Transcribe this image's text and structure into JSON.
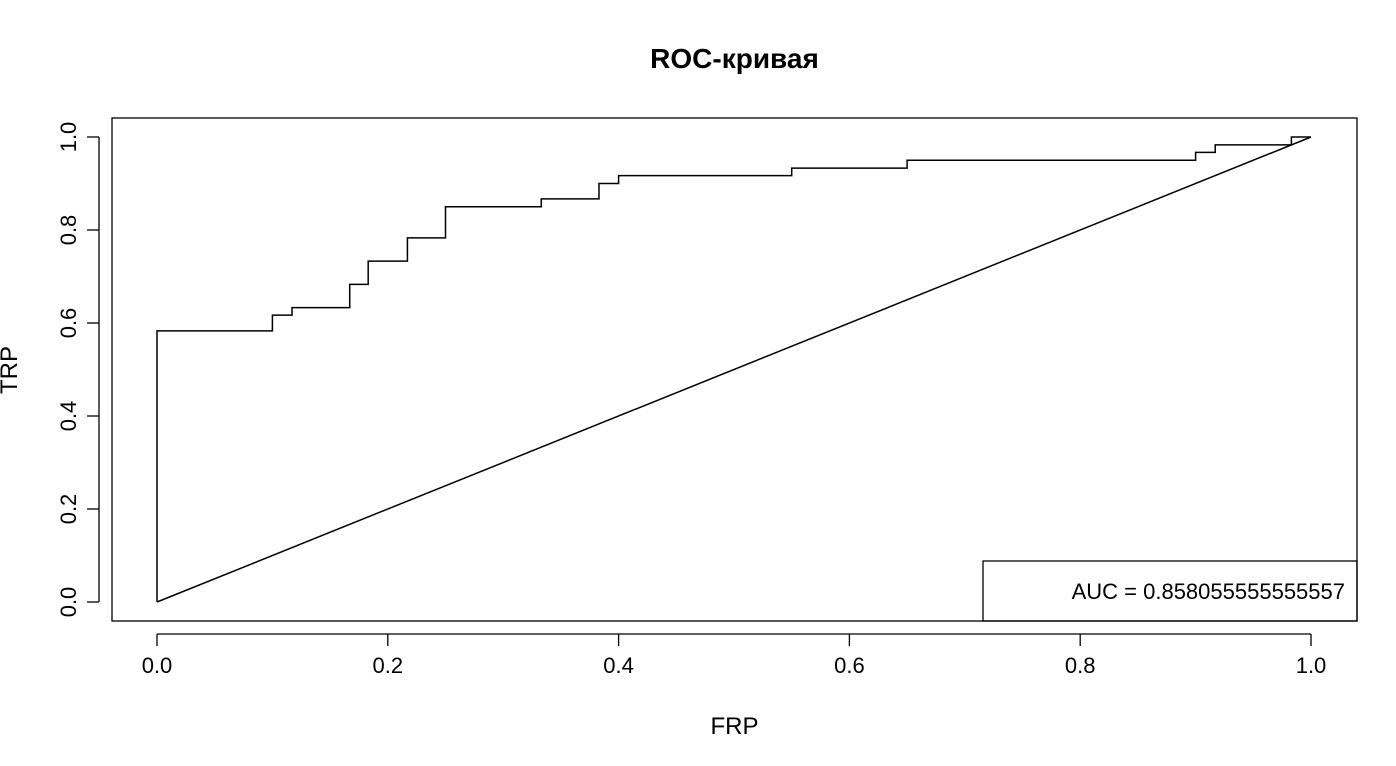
{
  "chart_data": {
    "type": "line",
    "title": "ROC-кривая",
    "xlabel": "FRP",
    "ylabel": "TRP",
    "xlim": [
      0,
      1
    ],
    "ylim": [
      0,
      1
    ],
    "x_ticks": [
      "0.0",
      "0.2",
      "0.4",
      "0.6",
      "0.8",
      "1.0"
    ],
    "y_ticks": [
      "0.0",
      "0.2",
      "0.4",
      "0.6",
      "0.8",
      "1.0"
    ],
    "grid": false,
    "legend": {
      "placement": "bottom-right",
      "text": "AUC =  0.858055555555557"
    },
    "series": [
      {
        "points": [
          [
            0.0,
            0.0
          ],
          [
            0.0,
            0.583
          ],
          [
            0.1,
            0.583
          ],
          [
            0.1,
            0.617
          ],
          [
            0.117,
            0.617
          ],
          [
            0.117,
            0.633
          ],
          [
            0.167,
            0.633
          ],
          [
            0.167,
            0.683
          ],
          [
            0.183,
            0.683
          ],
          [
            0.183,
            0.733
          ],
          [
            0.217,
            0.733
          ],
          [
            0.217,
            0.783
          ],
          [
            0.25,
            0.783
          ],
          [
            0.25,
            0.85
          ],
          [
            0.333,
            0.85
          ],
          [
            0.333,
            0.867
          ],
          [
            0.383,
            0.867
          ],
          [
            0.383,
            0.9
          ],
          [
            0.4,
            0.9
          ],
          [
            0.4,
            0.917
          ],
          [
            0.55,
            0.917
          ],
          [
            0.55,
            0.933
          ],
          [
            0.65,
            0.933
          ],
          [
            0.65,
            0.95
          ],
          [
            0.9,
            0.95
          ],
          [
            0.9,
            0.967
          ],
          [
            0.917,
            0.967
          ],
          [
            0.917,
            0.983
          ],
          [
            0.983,
            0.983
          ],
          [
            0.983,
            1.0
          ],
          [
            1.0,
            1.0
          ]
        ]
      },
      {
        "points": [
          [
            0.0,
            0.0
          ],
          [
            1.0,
            1.0
          ]
        ]
      }
    ]
  }
}
